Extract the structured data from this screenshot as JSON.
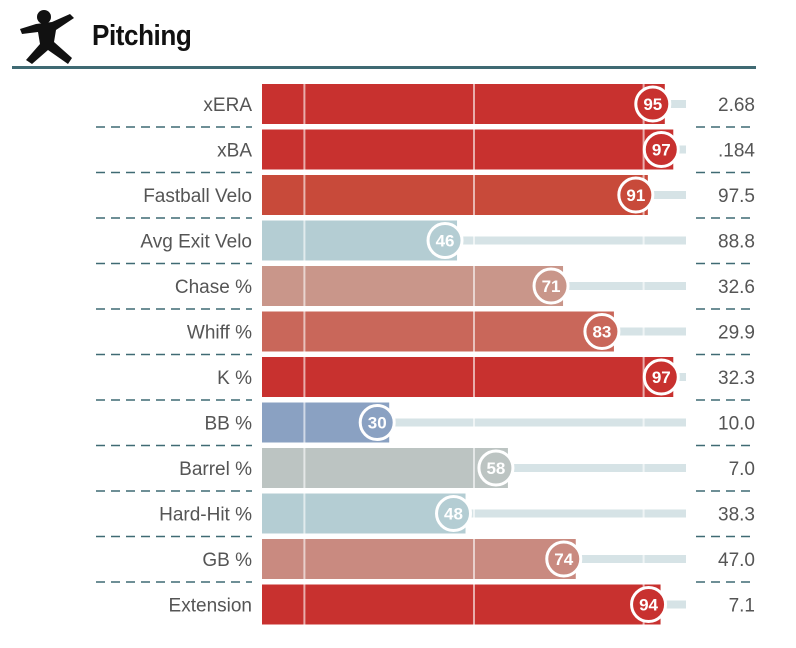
{
  "header": {
    "title": "Pitching",
    "icon": "pitcher-icon"
  },
  "chart_data": {
    "type": "bar",
    "orientation": "horizontal",
    "xlim": [
      0,
      100
    ],
    "categories": [
      "xERA",
      "xBA",
      "Fastball Velo",
      "Avg Exit Velo",
      "Chase %",
      "Whiff %",
      "K %",
      "BB %",
      "Barrel %",
      "Hard-Hit %",
      "GB %",
      "Extension"
    ],
    "values": [
      95,
      97,
      91,
      46,
      71,
      83,
      97,
      30,
      58,
      48,
      74,
      94
    ],
    "stat_values": [
      "2.68",
      ".184",
      "97.5",
      "88.8",
      "32.6",
      "29.9",
      "32.3",
      "10.0",
      "7.0",
      "38.3",
      "47.0",
      "7.1"
    ],
    "bar_colors": [
      "#c8312f",
      "#c8312f",
      "#c84a3a",
      "#b4cdd3",
      "#c9968a",
      "#c9675a",
      "#c8312f",
      "#8aa1c2",
      "#bcc4c2",
      "#b4cdd3",
      "#c98a80",
      "#c8312f"
    ],
    "gridlines": [
      10,
      50,
      90
    ],
    "track_color": "#d6e3e6"
  }
}
